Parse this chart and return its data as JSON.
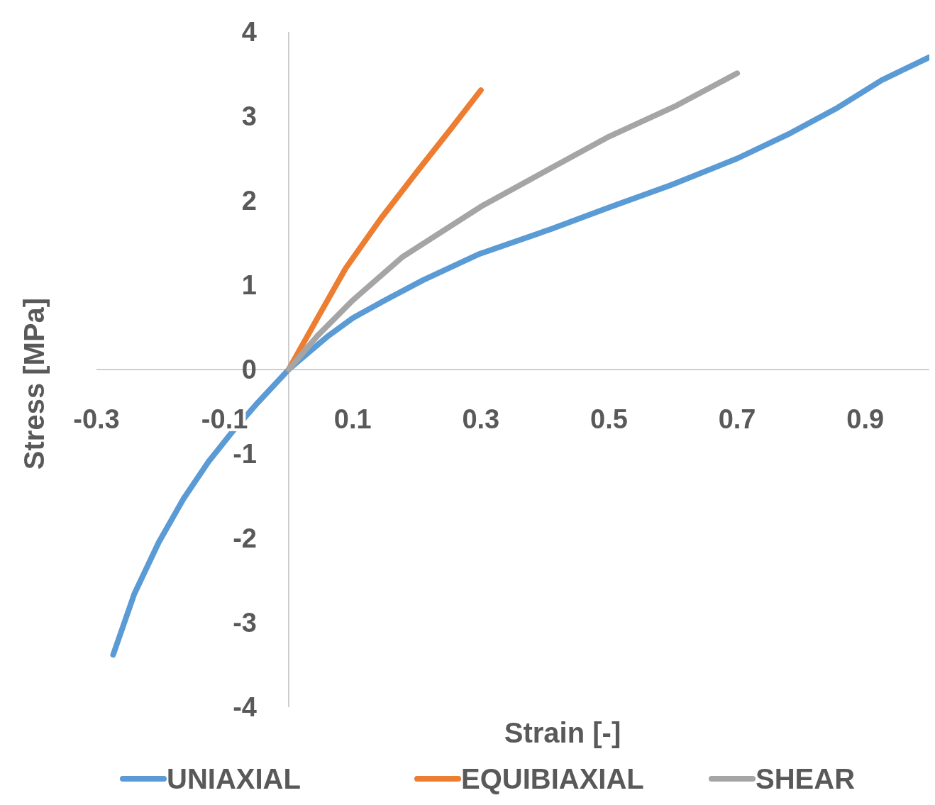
{
  "chart_data": {
    "type": "line",
    "xlabel": "Strain [-]",
    "ylabel": "Stress [MPa]",
    "xlim": [
      -0.3,
      1.0
    ],
    "xticks": [
      -0.3,
      -0.1,
      0.1,
      0.3,
      0.5,
      0.7,
      0.9
    ],
    "ylim": [
      -4,
      4
    ],
    "yticks": [
      -4,
      -3,
      -2,
      -1,
      0,
      1,
      2,
      3,
      4
    ],
    "grid": false,
    "legend": "bottom",
    "marker": "none",
    "line_style": "solid",
    "series": [
      {
        "name": "UNIAXIAL",
        "color": "#5b9bd5",
        "x": [
          -0.274,
          -0.241,
          -0.203,
          -0.164,
          -0.125,
          -0.087,
          -0.048,
          0,
          0.023,
          0.062,
          0.1,
          0.15,
          0.21,
          0.298,
          0.408,
          0.5,
          0.595,
          0.7,
          0.783,
          0.854,
          0.926,
          1.0
        ],
        "values": [
          -3.38,
          -2.66,
          -2.05,
          -1.53,
          -1.09,
          -0.73,
          -0.39,
          0,
          0.15,
          0.4,
          0.61,
          0.82,
          1.06,
          1.37,
          1.66,
          1.92,
          2.18,
          2.5,
          2.8,
          3.09,
          3.43,
          3.7
        ]
      },
      {
        "name": "EQUIBIAXIAL",
        "color": "#ed7d31",
        "x": [
          0,
          0.045,
          0.089,
          0.144,
          0.2,
          0.254,
          0.3
        ],
        "values": [
          0,
          0.61,
          1.2,
          1.79,
          2.34,
          2.86,
          3.31
        ]
      },
      {
        "name": "SHEAR",
        "color": "#a5a5a5",
        "x": [
          0,
          0.045,
          0.1,
          0.177,
          0.3,
          0.408,
          0.5,
          0.606,
          0.7
        ],
        "values": [
          0,
          0.4,
          0.82,
          1.33,
          1.93,
          2.38,
          2.76,
          3.13,
          3.51
        ]
      }
    ]
  }
}
